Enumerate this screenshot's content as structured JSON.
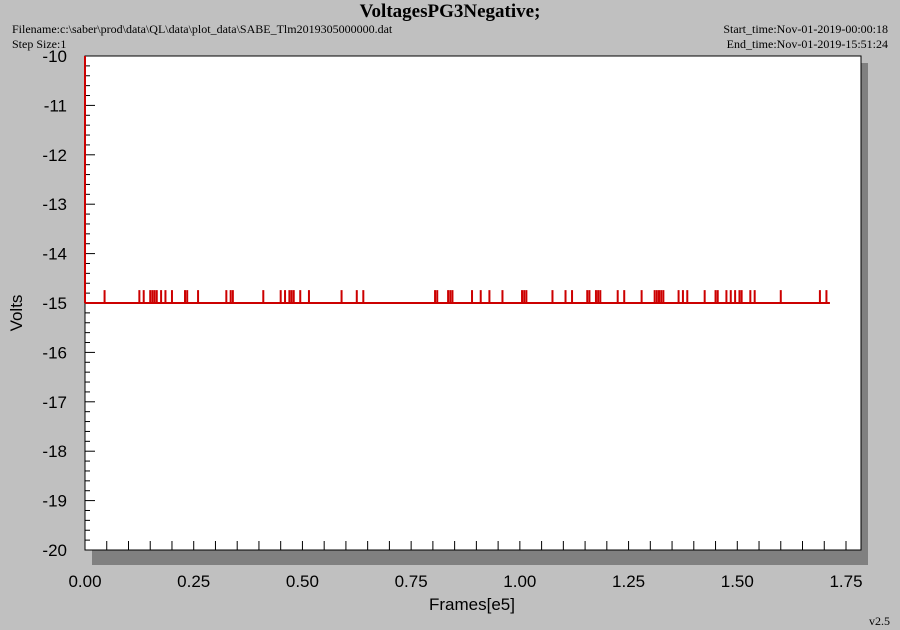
{
  "header": {
    "title": "VoltagesPG3Negative;",
    "filename": "Filename:c:\\saber\\prod\\data\\QL\\data\\plot_data\\SABE_Tlm2019305000000.dat",
    "step_size": "Step Size:1",
    "start_time": "Start_time:Nov-01-2019-00:00:18",
    "end_time": "End_time:Nov-01-2019-15:51:24"
  },
  "version": "v2.5",
  "colors": {
    "background": "#c0c0c0",
    "plot_area": "#ffffff",
    "series": "#cc0000",
    "shadow": "#808080"
  },
  "chart_data": {
    "type": "line",
    "title": "VoltagesPG3Negative;",
    "xlabel": "Frames[e5]",
    "ylabel": "Volts",
    "xlim": [
      0,
      1.75
    ],
    "ylim": [
      -20,
      -10
    ],
    "xticks": [
      "0.00",
      "0.25",
      "0.50",
      "0.75",
      "1.00",
      "1.25",
      "1.50",
      "1.75"
    ],
    "yticks": [
      "-10",
      "-11",
      "-12",
      "-13",
      "-14",
      "-15",
      "-16",
      "-17",
      "-18",
      "-19",
      "-20"
    ],
    "grid": false,
    "series": [
      {
        "baseline": -15.0,
        "spike_value": -14.8,
        "x_end": 1.713,
        "spikes_x": [
          0.045,
          0.125,
          0.135,
          0.15,
          0.155,
          0.16,
          0.165,
          0.175,
          0.185,
          0.2,
          0.23,
          0.235,
          0.26,
          0.325,
          0.335,
          0.34,
          0.41,
          0.45,
          0.46,
          0.47,
          0.475,
          0.48,
          0.495,
          0.515,
          0.59,
          0.625,
          0.64,
          0.805,
          0.81,
          0.835,
          0.84,
          0.845,
          0.89,
          0.91,
          0.93,
          0.96,
          1.005,
          1.01,
          1.015,
          1.075,
          1.105,
          1.12,
          1.155,
          1.16,
          1.175,
          1.18,
          1.185,
          1.225,
          1.24,
          1.28,
          1.31,
          1.315,
          1.32,
          1.325,
          1.33,
          1.365,
          1.375,
          1.385,
          1.425,
          1.45,
          1.455,
          1.475,
          1.485,
          1.495,
          1.505,
          1.51,
          1.53,
          1.54,
          1.6,
          1.69,
          1.705
        ],
        "values_note_hidden": ""
      }
    ],
    "start_value": -10.0
  }
}
